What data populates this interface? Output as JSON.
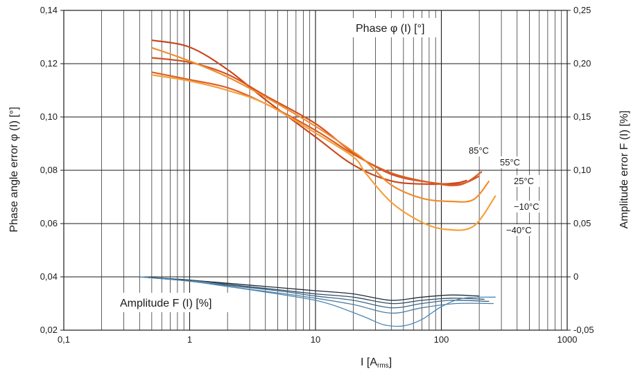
{
  "chart_data": {
    "type": "line",
    "title": "",
    "xlabel": "I [A",
    "xlabel_sub": "rms",
    "xlabel_close": "]",
    "ylabel_left": "Phase angle error φ (I) [°]",
    "ylabel_right": "Amplitude error F (I) [%]",
    "x_scale": "log",
    "xlim": [
      0.1,
      1000
    ],
    "ylim_left": [
      0.02,
      0.14
    ],
    "ylim_right": [
      -0.05,
      0.25
    ],
    "grid": true,
    "x_ticks": [
      {
        "value": 0.1,
        "label": "0,1"
      },
      {
        "value": 1,
        "label": "1"
      },
      {
        "value": 10,
        "label": "10"
      },
      {
        "value": 100,
        "label": "100"
      },
      {
        "value": 1000,
        "label": "1000"
      }
    ],
    "y_left_ticks": [
      {
        "value": 0.02,
        "label": "0,02"
      },
      {
        "value": 0.04,
        "label": "0,04"
      },
      {
        "value": 0.06,
        "label": "0,06"
      },
      {
        "value": 0.08,
        "label": "0,08"
      },
      {
        "value": 0.1,
        "label": "0,10"
      },
      {
        "value": 0.12,
        "label": "0,12"
      },
      {
        "value": 0.14,
        "label": "0,14"
      }
    ],
    "y_right_ticks": [
      {
        "value": -0.05,
        "label": "-0,05"
      },
      {
        "value": 0,
        "label": "0"
      },
      {
        "value": 0.05,
        "label": "0,05"
      },
      {
        "value": 0.1,
        "label": "0,10"
      },
      {
        "value": 0.15,
        "label": "0,15"
      },
      {
        "value": 0.2,
        "label": "0,20"
      },
      {
        "value": 0.25,
        "label": "0,25"
      }
    ],
    "annotations": {
      "phase_label": "Phase φ (I) [°]",
      "amplitude_label": "Amplitude F (I) [%]"
    },
    "phase_series": [
      {
        "name": "85°C",
        "color": "#c8481e",
        "axis": "left",
        "x": [
          0.5,
          1,
          2,
          4,
          10,
          20,
          40,
          80,
          130,
          160
        ],
        "y": [
          0.1288,
          0.1262,
          0.1178,
          0.1065,
          0.0925,
          0.082,
          0.076,
          0.0748,
          0.0752,
          0.0762
        ]
      },
      {
        "name": "55°C",
        "color": "#d25222",
        "axis": "left",
        "x": [
          0.5,
          1,
          2,
          4,
          10,
          20,
          40,
          80,
          140,
          200
        ],
        "y": [
          0.1222,
          0.1205,
          0.116,
          0.108,
          0.0975,
          0.0865,
          0.0785,
          0.0755,
          0.0748,
          0.0778
        ]
      },
      {
        "name": "25°C",
        "color": "#db5e26",
        "axis": "left",
        "x": [
          0.5,
          1,
          2,
          4,
          10,
          20,
          40,
          80,
          140,
          210
        ],
        "y": [
          0.1168,
          0.114,
          0.111,
          0.105,
          0.095,
          0.086,
          0.079,
          0.0755,
          0.0745,
          0.0795
        ]
      },
      {
        "name": "−10°C",
        "color": "#f28c2c",
        "axis": "left",
        "x": [
          0.5,
          1,
          2,
          4,
          10,
          20,
          25,
          40,
          70,
          120,
          180,
          240
        ],
        "y": [
          0.126,
          0.121,
          0.115,
          0.1075,
          0.0965,
          0.087,
          0.0835,
          0.0745,
          0.0695,
          0.0683,
          0.069,
          0.076
        ]
      },
      {
        "name": "−40°C",
        "color": "#f5a03a",
        "axis": "left",
        "x": [
          0.5,
          1,
          2,
          4,
          10,
          20,
          25,
          40,
          70,
          110,
          180,
          270
        ],
        "y": [
          0.1158,
          0.1135,
          0.11,
          0.105,
          0.094,
          0.085,
          0.079,
          0.068,
          0.0605,
          0.0578,
          0.059,
          0.0705
        ]
      }
    ],
    "amplitude_series": [
      {
        "name": "85°C",
        "color": "#1e2a38",
        "axis": "right",
        "x": [
          0.4,
          1,
          2,
          5,
          10,
          20,
          40,
          70,
          120,
          200
        ],
        "y": [
          0.0,
          -0.003,
          -0.006,
          -0.01,
          -0.013,
          -0.016,
          -0.022,
          -0.019,
          -0.017,
          -0.018
        ]
      },
      {
        "name": "55°C",
        "color": "#2f4a63",
        "axis": "right",
        "x": [
          0.4,
          1,
          2,
          5,
          10,
          20,
          40,
          70,
          120,
          220
        ],
        "y": [
          0.0,
          -0.003,
          -0.007,
          -0.012,
          -0.016,
          -0.019,
          -0.025,
          -0.022,
          -0.02,
          -0.021
        ]
      },
      {
        "name": "25°C",
        "color": "#3b6585",
        "axis": "right",
        "x": [
          0.4,
          1,
          2,
          5,
          10,
          20,
          40,
          70,
          120,
          240
        ],
        "y": [
          0.0,
          -0.004,
          -0.008,
          -0.013,
          -0.018,
          -0.022,
          -0.029,
          -0.025,
          -0.022,
          -0.023
        ]
      },
      {
        "name": "−10°C",
        "color": "#4d7ea3",
        "axis": "right",
        "x": [
          0.4,
          1,
          2,
          5,
          10,
          20,
          40,
          70,
          130,
          260
        ],
        "y": [
          0.0,
          -0.004,
          -0.009,
          -0.015,
          -0.02,
          -0.026,
          -0.034,
          -0.029,
          -0.025,
          -0.025
        ]
      },
      {
        "name": "−40°C",
        "color": "#4a86b6",
        "axis": "right",
        "x": [
          0.4,
          1,
          2,
          5,
          10,
          15,
          25,
          35,
          50,
          70,
          100,
          150,
          270
        ],
        "y": [
          0.0,
          -0.004,
          -0.009,
          -0.016,
          -0.022,
          -0.028,
          -0.038,
          -0.045,
          -0.046,
          -0.04,
          -0.028,
          -0.02,
          -0.019
        ]
      }
    ]
  }
}
